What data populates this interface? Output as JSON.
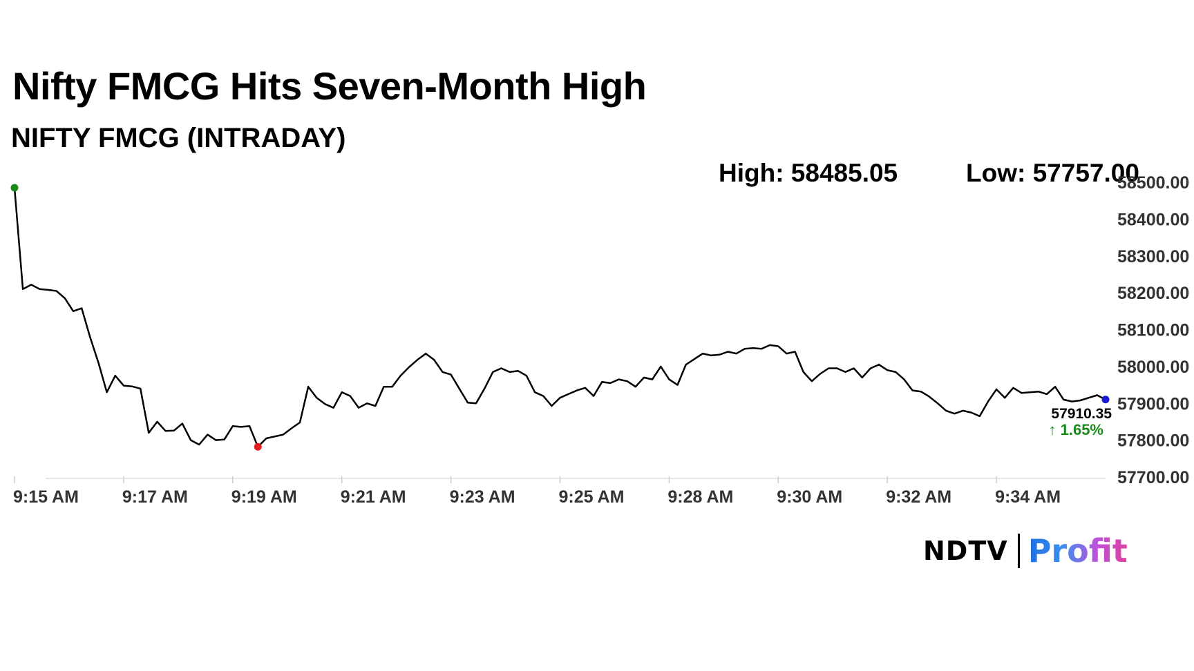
{
  "title": "Nifty FMCG Hits Seven-Month High",
  "subtitle": "NIFTY FMCG (INTRADAY)",
  "stats": {
    "high": "High: 58485.05",
    "low": "Low: 57757.00"
  },
  "logo": {
    "brand": "NDTV",
    "product": "Profit"
  },
  "colors": {
    "line": "#000000",
    "high_marker": "#1a8a1a",
    "low_marker": "#e02020",
    "last_marker": "#1a1ad0",
    "change": "#1a8a1a",
    "axis": "#dddddd",
    "tick_text": "#333333"
  },
  "chart_data": {
    "type": "line",
    "x_tick_labels": [
      "9:15 AM",
      "9:17 AM",
      "9:19 AM",
      "9:21 AM",
      "9:23 AM",
      "9:25 AM",
      "9:28 AM",
      "9:30 AM",
      "9:32 AM",
      "9:34 AM"
    ],
    "y_tick_labels": [
      "57700.00",
      "57800.00",
      "57900.00",
      "58000.00",
      "58100.00",
      "58200.00",
      "58300.00",
      "58400.00",
      "58500.00"
    ],
    "ylim": [
      57700,
      58500
    ],
    "grid": false,
    "high": 58485.05,
    "low": 57757.0,
    "last_value": "57910.35",
    "change": "↑ 1.65%",
    "values": [
      58485,
      58210,
      58222,
      58210,
      58208,
      58205,
      58185,
      58150,
      58158,
      58080,
      58010,
      57930,
      57975,
      57948,
      57946,
      57940,
      57820,
      57850,
      57825,
      57826,
      57845,
      57800,
      57788,
      57815,
      57800,
      57802,
      57838,
      57836,
      57838,
      57782,
      57805,
      57810,
      57815,
      57832,
      57848,
      57945,
      57915,
      57898,
      57888,
      57930,
      57920,
      57888,
      57900,
      57893,
      57945,
      57945,
      57975,
      57998,
      58018,
      58035,
      58018,
      57985,
      57978,
      57940,
      57902,
      57900,
      57940,
      57985,
      57995,
      57985,
      57988,
      57975,
      57930,
      57920,
      57893,
      57915,
      57925,
      57935,
      57942,
      57920,
      57958,
      57955,
      57965,
      57960,
      57945,
      57970,
      57965,
      58000,
      57965,
      57950,
      58005,
      58020,
      58035,
      58030,
      58032,
      58040,
      58035,
      58048,
      58050,
      58048,
      58058,
      58055,
      58035,
      58040,
      57985,
      57960,
      57980,
      57995,
      57995,
      57985,
      57995,
      57970,
      57995,
      58005,
      57990,
      57985,
      57965,
      57935,
      57932,
      57918,
      57900,
      57880,
      57872,
      57880,
      57875,
      57865,
      57905,
      57938,
      57915,
      57942,
      57928,
      57930,
      57932,
      57925,
      57945,
      57910,
      57905,
      57908,
      57915,
      57922,
      57910.35
    ]
  }
}
